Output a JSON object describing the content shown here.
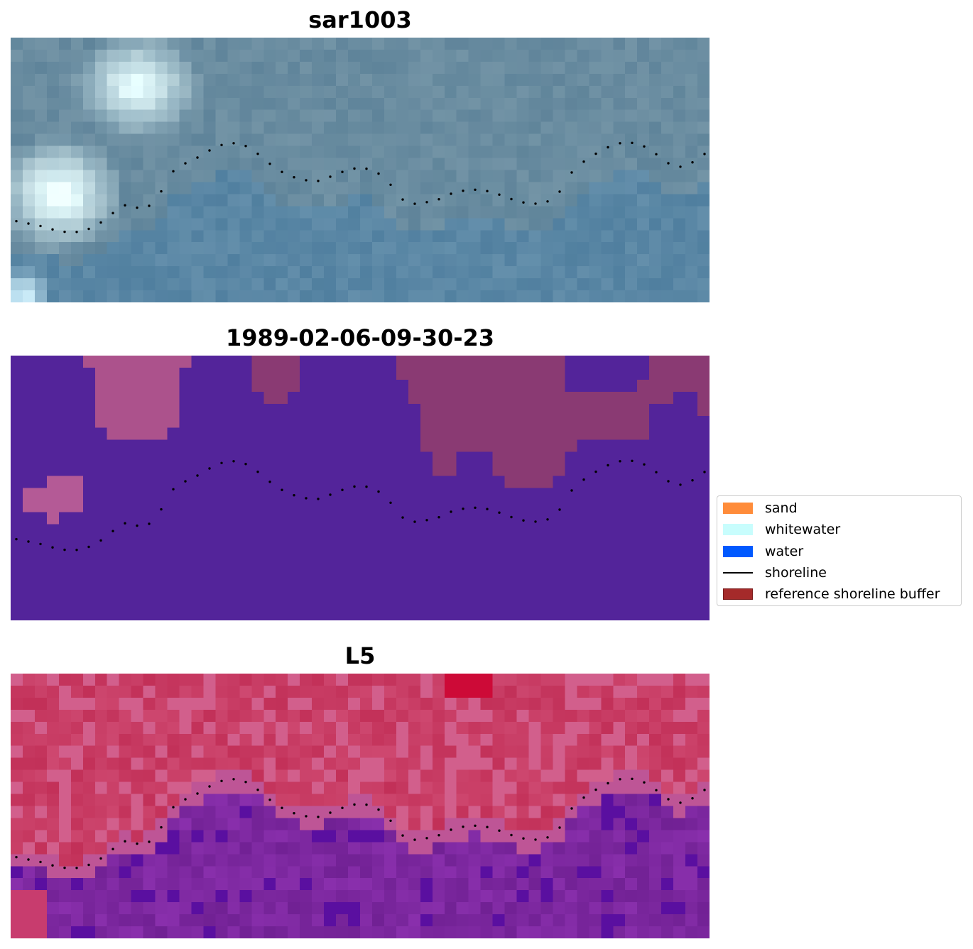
{
  "panels": [
    {
      "id": "sar",
      "title": "sar1003"
    },
    {
      "id": "cls",
      "title": "1989-02-06-09-30-23"
    },
    {
      "id": "l5",
      "title": "L5"
    }
  ],
  "legend": {
    "items": [
      {
        "label": "sand",
        "color": "#ff8c3a",
        "kind": "patch"
      },
      {
        "label": "whitewater",
        "color": "#c8fdfd",
        "kind": "patch"
      },
      {
        "label": "water",
        "color": "#0059ff",
        "kind": "patch"
      },
      {
        "label": "shoreline",
        "color": "#000000",
        "kind": "line"
      },
      {
        "label": "reference shoreline buffer",
        "color": "#a52a2a",
        "kind": "patch"
      }
    ]
  },
  "colors": {
    "sar_base": "#6d8fa3",
    "class_water": "#53249a",
    "class_sand": "#8a3a73",
    "l5_land": "#c33e6d",
    "l5_water": "#7a2a9a"
  },
  "icons": [
    "shoreline-dots"
  ]
}
